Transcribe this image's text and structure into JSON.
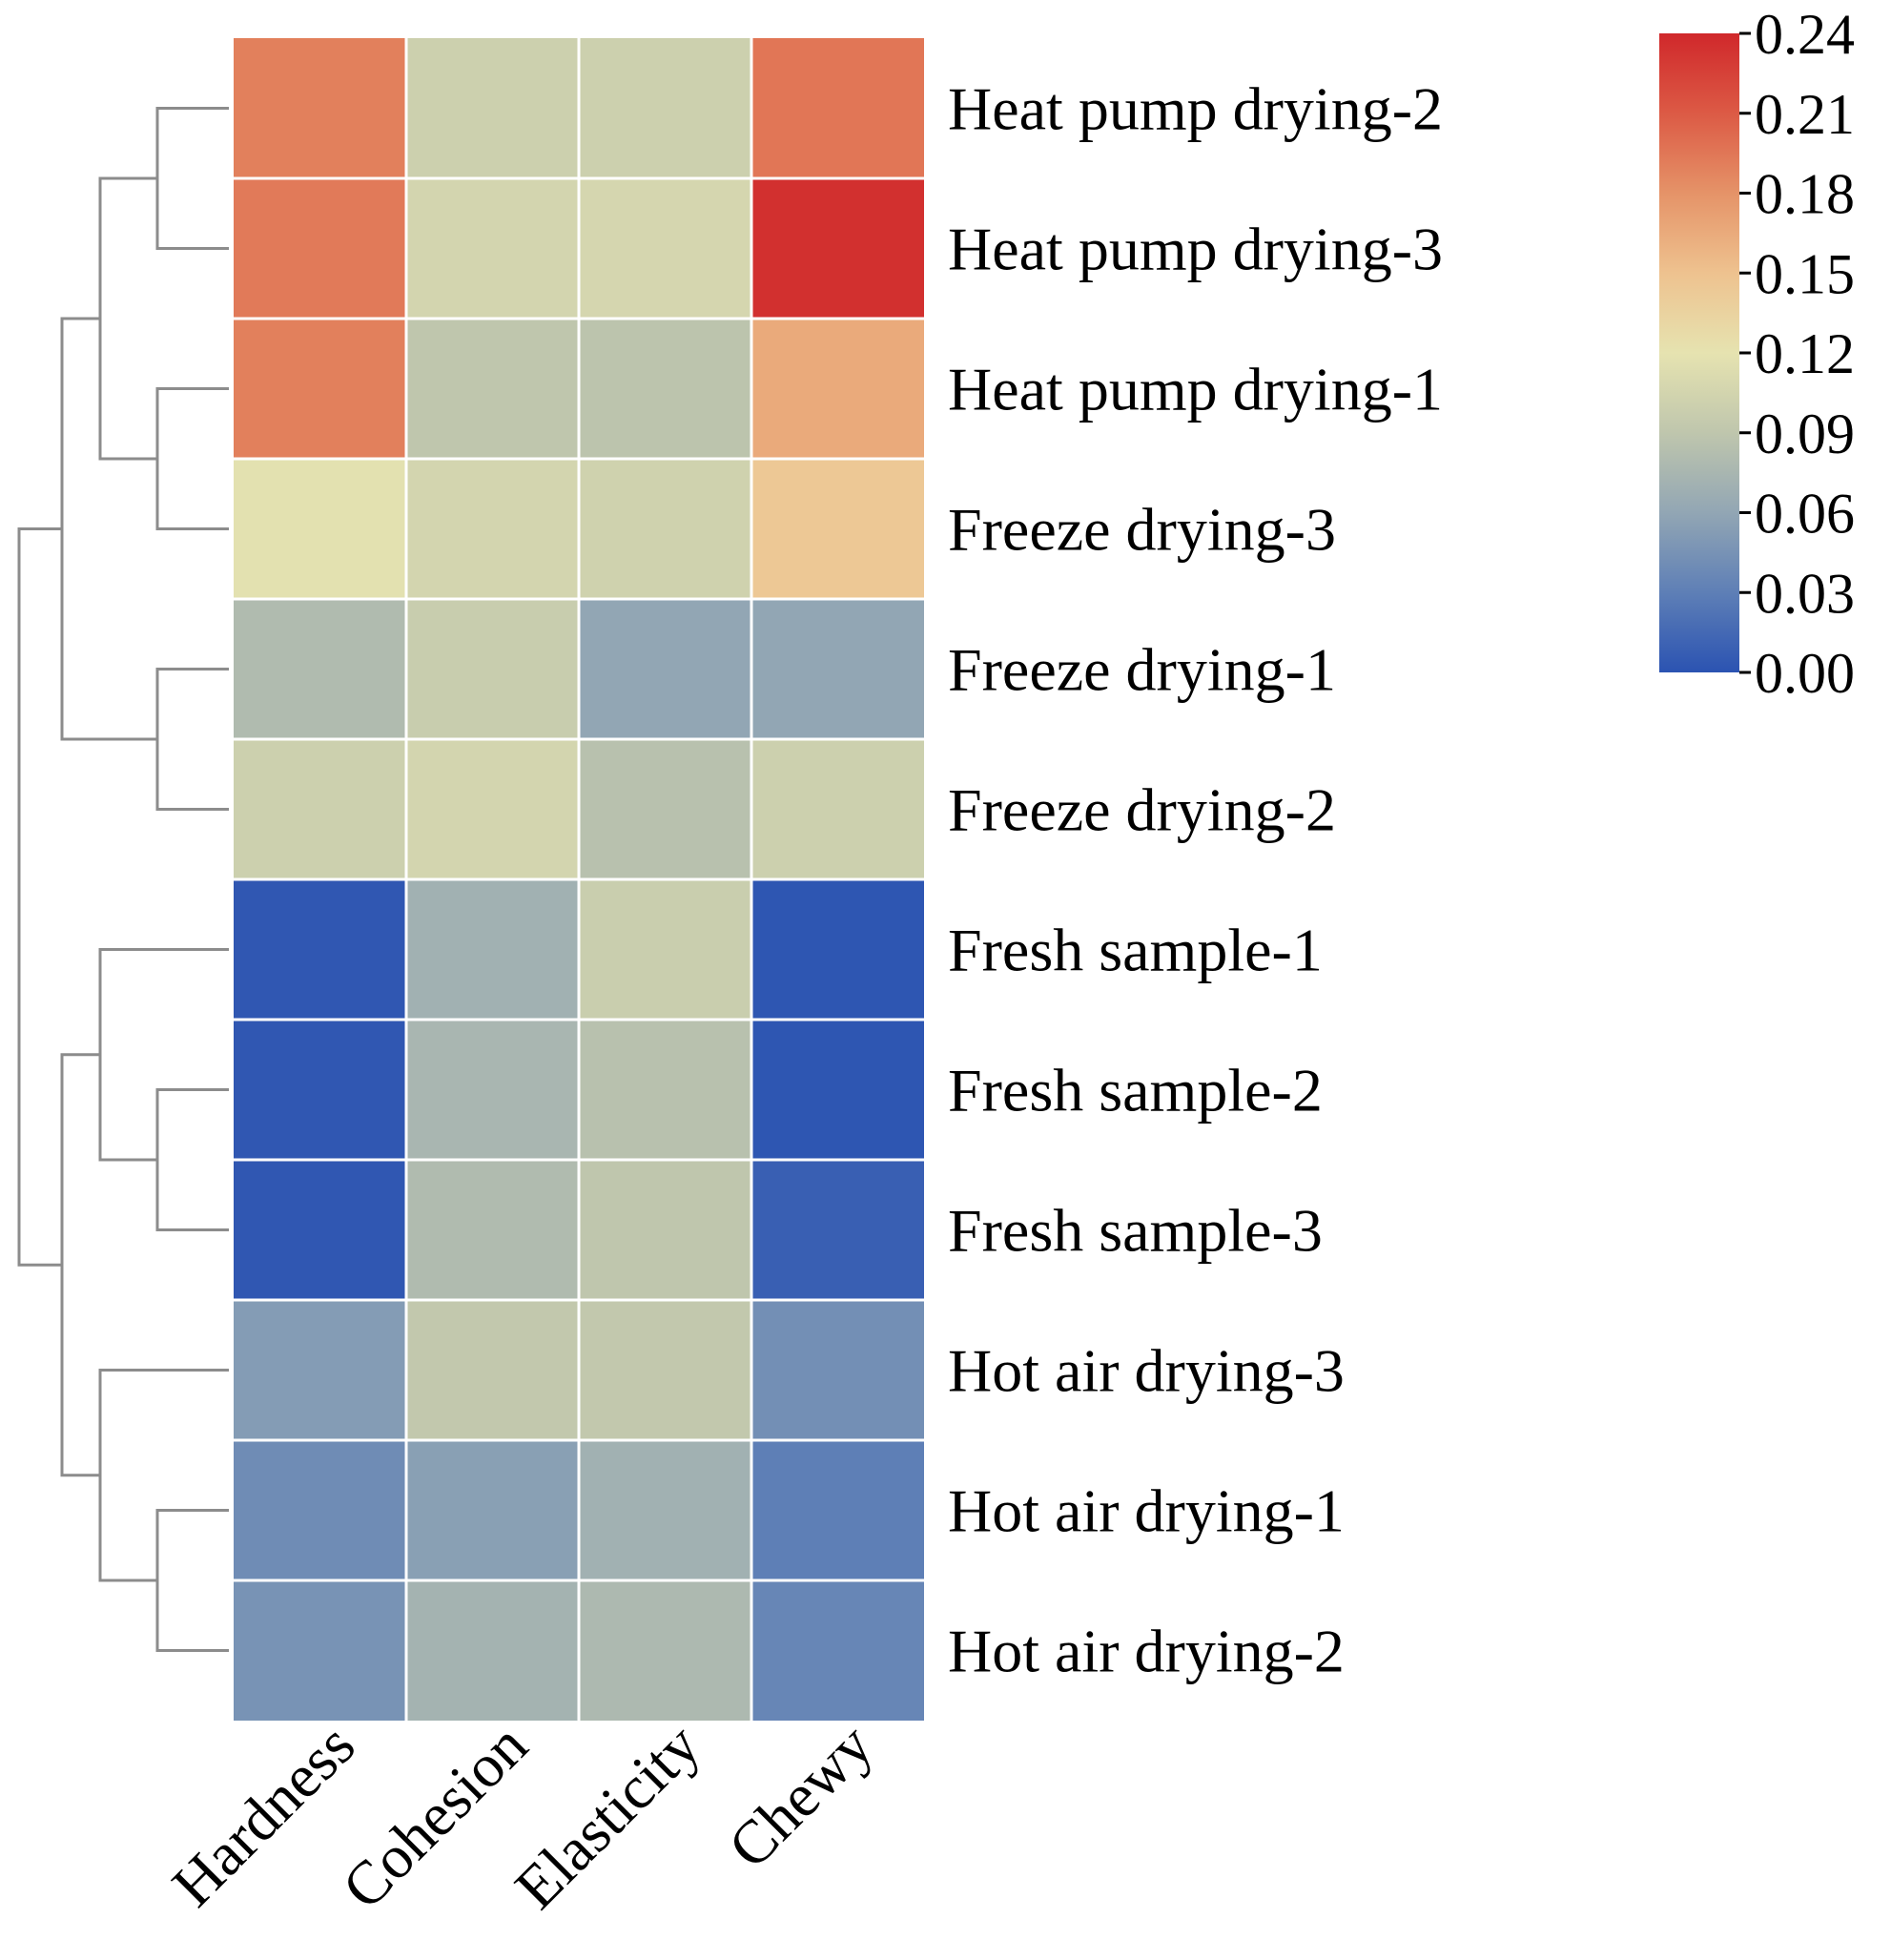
{
  "chart_data": {
    "type": "heatmap",
    "title": "",
    "columns": [
      "Hardness",
      "Cohesion",
      "Elasticity",
      "Chewy"
    ],
    "rows": [
      "Heat pump drying-2",
      "Heat pump drying-3",
      "Heat pump drying-1",
      "Freeze drying-3",
      "Freeze drying-1",
      "Freeze drying-2",
      "Fresh sample-1",
      "Fresh sample-2",
      "Fresh sample-3",
      "Hot air drying-3",
      "Hot air drying-1",
      "Hot air drying-2"
    ],
    "values": [
      [
        0.19,
        0.1,
        0.1,
        0.195
      ],
      [
        0.193,
        0.105,
        0.107,
        0.235
      ],
      [
        0.19,
        0.09,
        0.088,
        0.165
      ],
      [
        0.118,
        0.105,
        0.102,
        0.145
      ],
      [
        0.08,
        0.097,
        0.06,
        0.06
      ],
      [
        0.1,
        0.105,
        0.085,
        0.1
      ],
      [
        0.003,
        0.07,
        0.098,
        0.002
      ],
      [
        0.003,
        0.075,
        0.085,
        0.002
      ],
      [
        0.003,
        0.08,
        0.09,
        0.008
      ],
      [
        0.052,
        0.092,
        0.092,
        0.042
      ],
      [
        0.04,
        0.055,
        0.07,
        0.03
      ],
      [
        0.045,
        0.072,
        0.078,
        0.035
      ]
    ],
    "colorbar": {
      "min": 0.0,
      "max": 0.24,
      "ticks": [
        "0.00",
        "0.03",
        "0.06",
        "0.09",
        "0.12",
        "0.15",
        "0.18",
        "0.21",
        "0.24"
      ],
      "colors": [
        "#2b53b2",
        "#5e7fb6",
        "#92a6b4",
        "#bfc6ad",
        "#e6e3b0",
        "#eec28f",
        "#e59368",
        "#dc5a45",
        "#d0282b"
      ]
    },
    "dendrogram": {
      "side": "left",
      "line_color": "#8c8c8c"
    },
    "grid_line_color": "#ffffff"
  }
}
